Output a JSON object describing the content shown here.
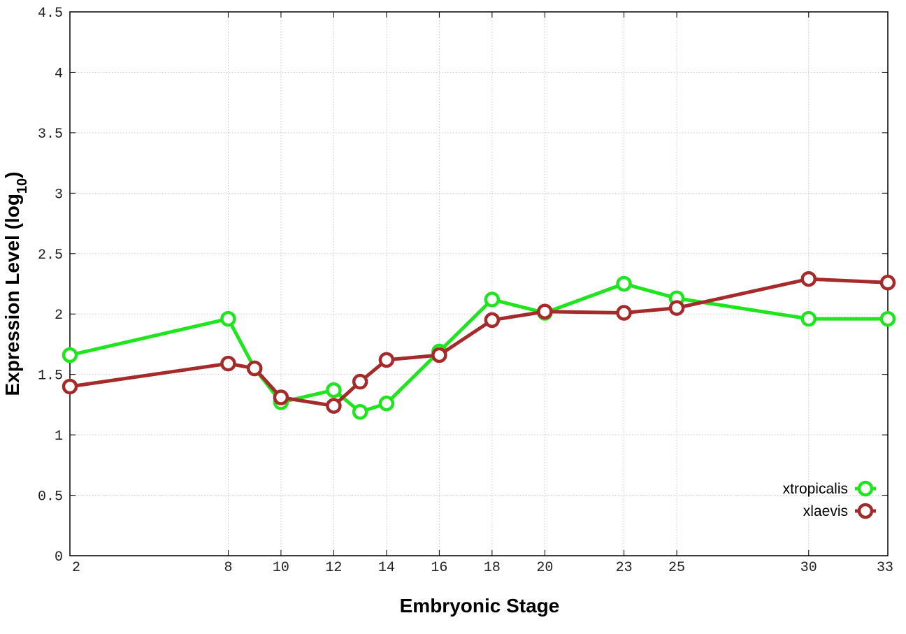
{
  "chart_data": {
    "type": "line",
    "title": "",
    "xlabel": "Embryonic Stage",
    "ylabel": {
      "prefix": "Expression Level (log",
      "subscript": "10",
      "suffix": ")"
    },
    "x_ticks": [
      2,
      8,
      10,
      12,
      14,
      16,
      18,
      20,
      23,
      25,
      30,
      33
    ],
    "y_ticks": [
      "0",
      "0.5",
      "1",
      "1.5",
      "2",
      "2.5",
      "3",
      "3.5",
      "4",
      "4.5"
    ],
    "xlim": [
      2,
      33
    ],
    "ylim": [
      0,
      4.5
    ],
    "grid": true,
    "legend_position": "bottom-right",
    "series": [
      {
        "name": "xtropicalis",
        "color": "#1ee51e",
        "x": [
          2,
          8,
          9,
          10,
          12,
          13,
          14,
          16,
          18,
          20,
          23,
          25,
          30,
          33
        ],
        "y": [
          1.66,
          1.96,
          1.55,
          1.27,
          1.37,
          1.19,
          1.26,
          1.69,
          2.12,
          2.01,
          2.25,
          2.13,
          1.96,
          1.96
        ]
      },
      {
        "name": "xlaevis",
        "color": "#a52a2a",
        "x": [
          2,
          8,
          9,
          10,
          12,
          13,
          14,
          16,
          18,
          20,
          23,
          25,
          30,
          33
        ],
        "y": [
          1.4,
          1.59,
          1.55,
          1.31,
          1.24,
          1.44,
          1.62,
          1.66,
          1.95,
          2.02,
          2.01,
          2.05,
          2.29,
          2.26
        ]
      }
    ]
  }
}
